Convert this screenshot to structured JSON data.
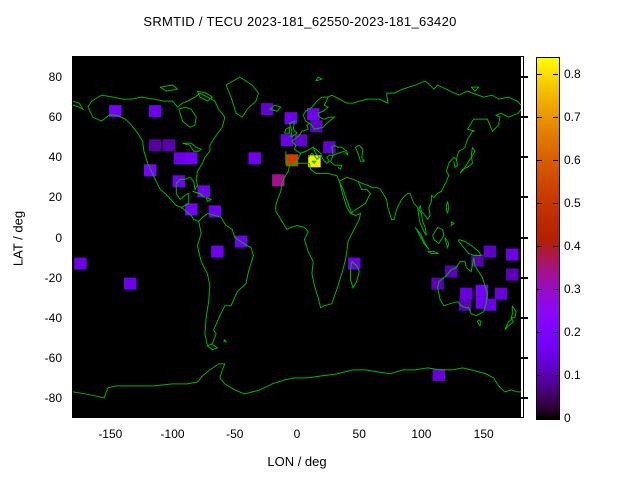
{
  "title": "SRMTID / TECU 2023-181_62550-2023-181_63420",
  "axes": {
    "x_label": "LON / deg",
    "y_label": "LAT / deg",
    "x_ticks": [
      -150,
      -100,
      -50,
      0,
      50,
      100,
      150
    ],
    "y_ticks": [
      80,
      60,
      40,
      20,
      0,
      -20,
      -40,
      -60,
      -80
    ],
    "x_range": [
      -180,
      180
    ],
    "y_range": [
      -90,
      90
    ]
  },
  "colorbar": {
    "range": [
      0,
      0.84
    ],
    "tick_values": [
      0,
      0.1,
      0.2,
      0.3,
      0.4,
      0.5,
      0.6,
      0.7,
      0.8
    ],
    "tick_labels": [
      "0",
      "0.1",
      "0.2",
      "0.3",
      "0.4",
      "0.5",
      "0.6",
      "0.7",
      "0.8"
    ],
    "palette": "gnuplot pm3d rgbformulae 7,5,15 (black-purple-orange-yellow)"
  },
  "colors": {
    "page_background": "#ffffff",
    "map_background": "#000000",
    "coastline": "#00b400",
    "text": "#000000",
    "border": "#000000"
  },
  "chart_data": {
    "type": "heatmap",
    "title": "SRMTID / TECU 2023-181_62550-2023-181_63420",
    "xlabel": "LON / deg",
    "ylabel": "LAT / deg",
    "xlim": [
      -180,
      180
    ],
    "ylim": [
      -90,
      90
    ],
    "colorbar_range": [
      0,
      0.84
    ],
    "cell_size_deg": {
      "lon": 10,
      "lat": 6
    },
    "legend_position": "right-colorbar",
    "grid": false,
    "points": [
      {
        "lon": -146,
        "lat": 63,
        "tecu": 0.18
      },
      {
        "lon": -114,
        "lat": 63,
        "tecu": 0.16
      },
      {
        "lon": -24,
        "lat": 64,
        "tecu": 0.13
      },
      {
        "lon": -5,
        "lat": 59.5,
        "tecu": 0.16
      },
      {
        "lon": 13,
        "lat": 61.5,
        "tecu": 0.16
      },
      {
        "lon": 15.5,
        "lat": 55.5,
        "tecu": 0.12
      },
      {
        "lon": -114,
        "lat": 46,
        "tecu": 0.09
      },
      {
        "lon": -103,
        "lat": 46,
        "tecu": 0.1
      },
      {
        "lon": -94,
        "lat": 39.5,
        "tecu": 0.15
      },
      {
        "lon": -85,
        "lat": 39.5,
        "tecu": 0.17
      },
      {
        "lon": -118,
        "lat": 33.5,
        "tecu": 0.19
      },
      {
        "lon": -95,
        "lat": 28,
        "tecu": 0.16
      },
      {
        "lon": -75,
        "lat": 23,
        "tecu": 0.17
      },
      {
        "lon": -85,
        "lat": 14,
        "tecu": 0.18
      },
      {
        "lon": -66,
        "lat": 13,
        "tecu": 0.16
      },
      {
        "lon": -34,
        "lat": 39.5,
        "tecu": 0.16
      },
      {
        "lon": -8,
        "lat": 48.5,
        "tecu": 0.15
      },
      {
        "lon": 3,
        "lat": 48.5,
        "tecu": 0.13
      },
      {
        "lon": 26,
        "lat": 45,
        "tecu": 0.13
      },
      {
        "lon": -4,
        "lat": 38.5,
        "tecu": 0.53
      },
      {
        "lon": 14,
        "lat": 38,
        "tecu": 0.82
      },
      {
        "lon": -15,
        "lat": 28.5,
        "tecu": 0.34
      },
      {
        "lon": -174,
        "lat": -13,
        "tecu": 0.15
      },
      {
        "lon": -134,
        "lat": -23,
        "tecu": 0.16
      },
      {
        "lon": -64,
        "lat": -7,
        "tecu": 0.16
      },
      {
        "lon": -45,
        "lat": -2,
        "tecu": 0.16
      },
      {
        "lon": 46,
        "lat": -13,
        "tecu": 0.15
      },
      {
        "lon": 155,
        "lat": -7,
        "tecu": 0.12
      },
      {
        "lon": 173,
        "lat": -8.5,
        "tecu": 0.15
      },
      {
        "lon": 145,
        "lat": -11.5,
        "tecu": 0.1
      },
      {
        "lon": 124,
        "lat": -17,
        "tecu": 0.11
      },
      {
        "lon": 173,
        "lat": -18.5,
        "tecu": 0.11
      },
      {
        "lon": 113,
        "lat": -23,
        "tecu": 0.11
      },
      {
        "lon": 136,
        "lat": -28,
        "tecu": 0.14
      },
      {
        "lon": 148.5,
        "lat": -26.5,
        "tecu": 0.18
      },
      {
        "lon": 148.5,
        "lat": -32.5,
        "tecu": 0.17
      },
      {
        "lon": 164,
        "lat": -28,
        "tecu": 0.14
      },
      {
        "lon": 135,
        "lat": -33.5,
        "tecu": 0.11
      },
      {
        "lon": 155,
        "lat": -33.5,
        "tecu": 0.15
      },
      {
        "lon": 114,
        "lat": -68.5,
        "tecu": 0.14
      }
    ]
  }
}
